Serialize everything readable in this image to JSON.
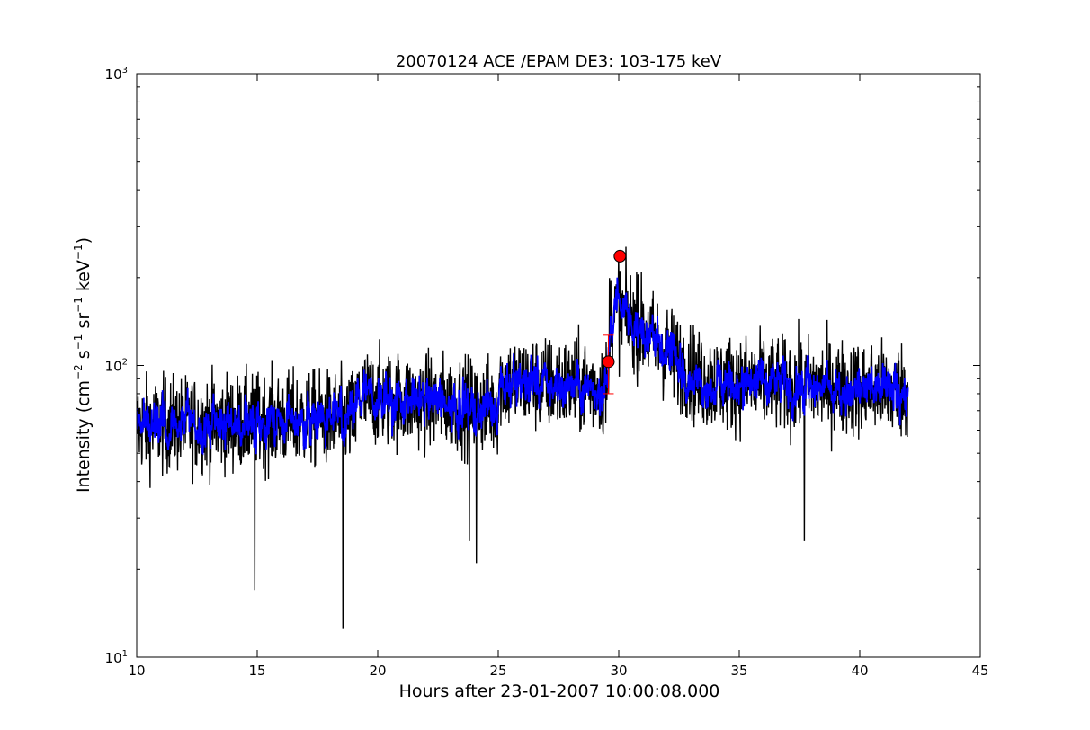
{
  "chart_data": {
    "type": "line",
    "title": "20070124 ACE /EPAM DE3: 103-175 keV",
    "xlabel": "Hours after 23-01-2007 10:00:08.000",
    "ylabel": {
      "parts": [
        {
          "text": "Intensity (cm",
          "sup": false
        },
        {
          "text": "−2",
          "sup": true
        },
        {
          "text": " s",
          "sup": false
        },
        {
          "text": "−1",
          "sup": true
        },
        {
          "text": " sr",
          "sup": false
        },
        {
          "text": "−1",
          "sup": true
        },
        {
          "text": " keV",
          "sup": false
        },
        {
          "text": "−1",
          "sup": true
        },
        {
          "text": ")",
          "sup": false
        }
      ]
    },
    "xlim": [
      10,
      45
    ],
    "ylim": [
      10,
      1000
    ],
    "yscale": "log",
    "grid": false,
    "xticks": [
      10,
      15,
      20,
      25,
      30,
      35,
      40,
      45
    ],
    "yticks": [
      {
        "value": 10,
        "base": "10",
        "exp": "1"
      },
      {
        "value": 100,
        "base": "10",
        "exp": "2"
      },
      {
        "value": 1000,
        "base": "10",
        "exp": "3"
      }
    ],
    "series": [
      {
        "color": "#000000",
        "style": "raw noisy line",
        "x_range": [
          10,
          42
        ],
        "baseline_segments": [
          {
            "x": [
              10.0,
              19.1
            ],
            "y": [
              62,
              66
            ]
          },
          {
            "x": [
              19.1,
              25.0
            ],
            "y": [
              78,
              72
            ]
          },
          {
            "x": [
              25.0,
              29.6
            ],
            "y": [
              88,
              84
            ]
          },
          {
            "x": [
              29.6,
              30.2
            ],
            "y": [
              150,
              150
            ]
          },
          {
            "x": [
              30.2,
              33.3
            ],
            "y": [
              150,
              90
            ]
          },
          {
            "x": [
              33.3,
              42.0
            ],
            "y": [
              88,
              82
            ]
          }
        ],
        "spikes": [
          {
            "x": 14.9,
            "y": 17
          },
          {
            "x": 18.55,
            "y": 12.5
          },
          {
            "x": 23.8,
            "y": 25
          },
          {
            "x": 24.1,
            "y": 21
          },
          {
            "x": 37.7,
            "y": 25
          },
          {
            "x": 30.0,
            "y": 235
          },
          {
            "x": 30.8,
            "y": 205
          }
        ]
      },
      {
        "color": "#0000ff",
        "style": "smoothed line",
        "x_range": [
          10,
          42
        ]
      }
    ],
    "markers": [
      {
        "x": 29.57,
        "y": 103,
        "color": "#ff0000",
        "shape": "circle"
      },
      {
        "x": 30.05,
        "y": 237,
        "color": "#ff0000",
        "shape": "circle"
      }
    ],
    "error_bars": [
      {
        "x": 29.57,
        "y_low": 80,
        "y_high": 127,
        "color": "#ff0000"
      }
    ]
  }
}
